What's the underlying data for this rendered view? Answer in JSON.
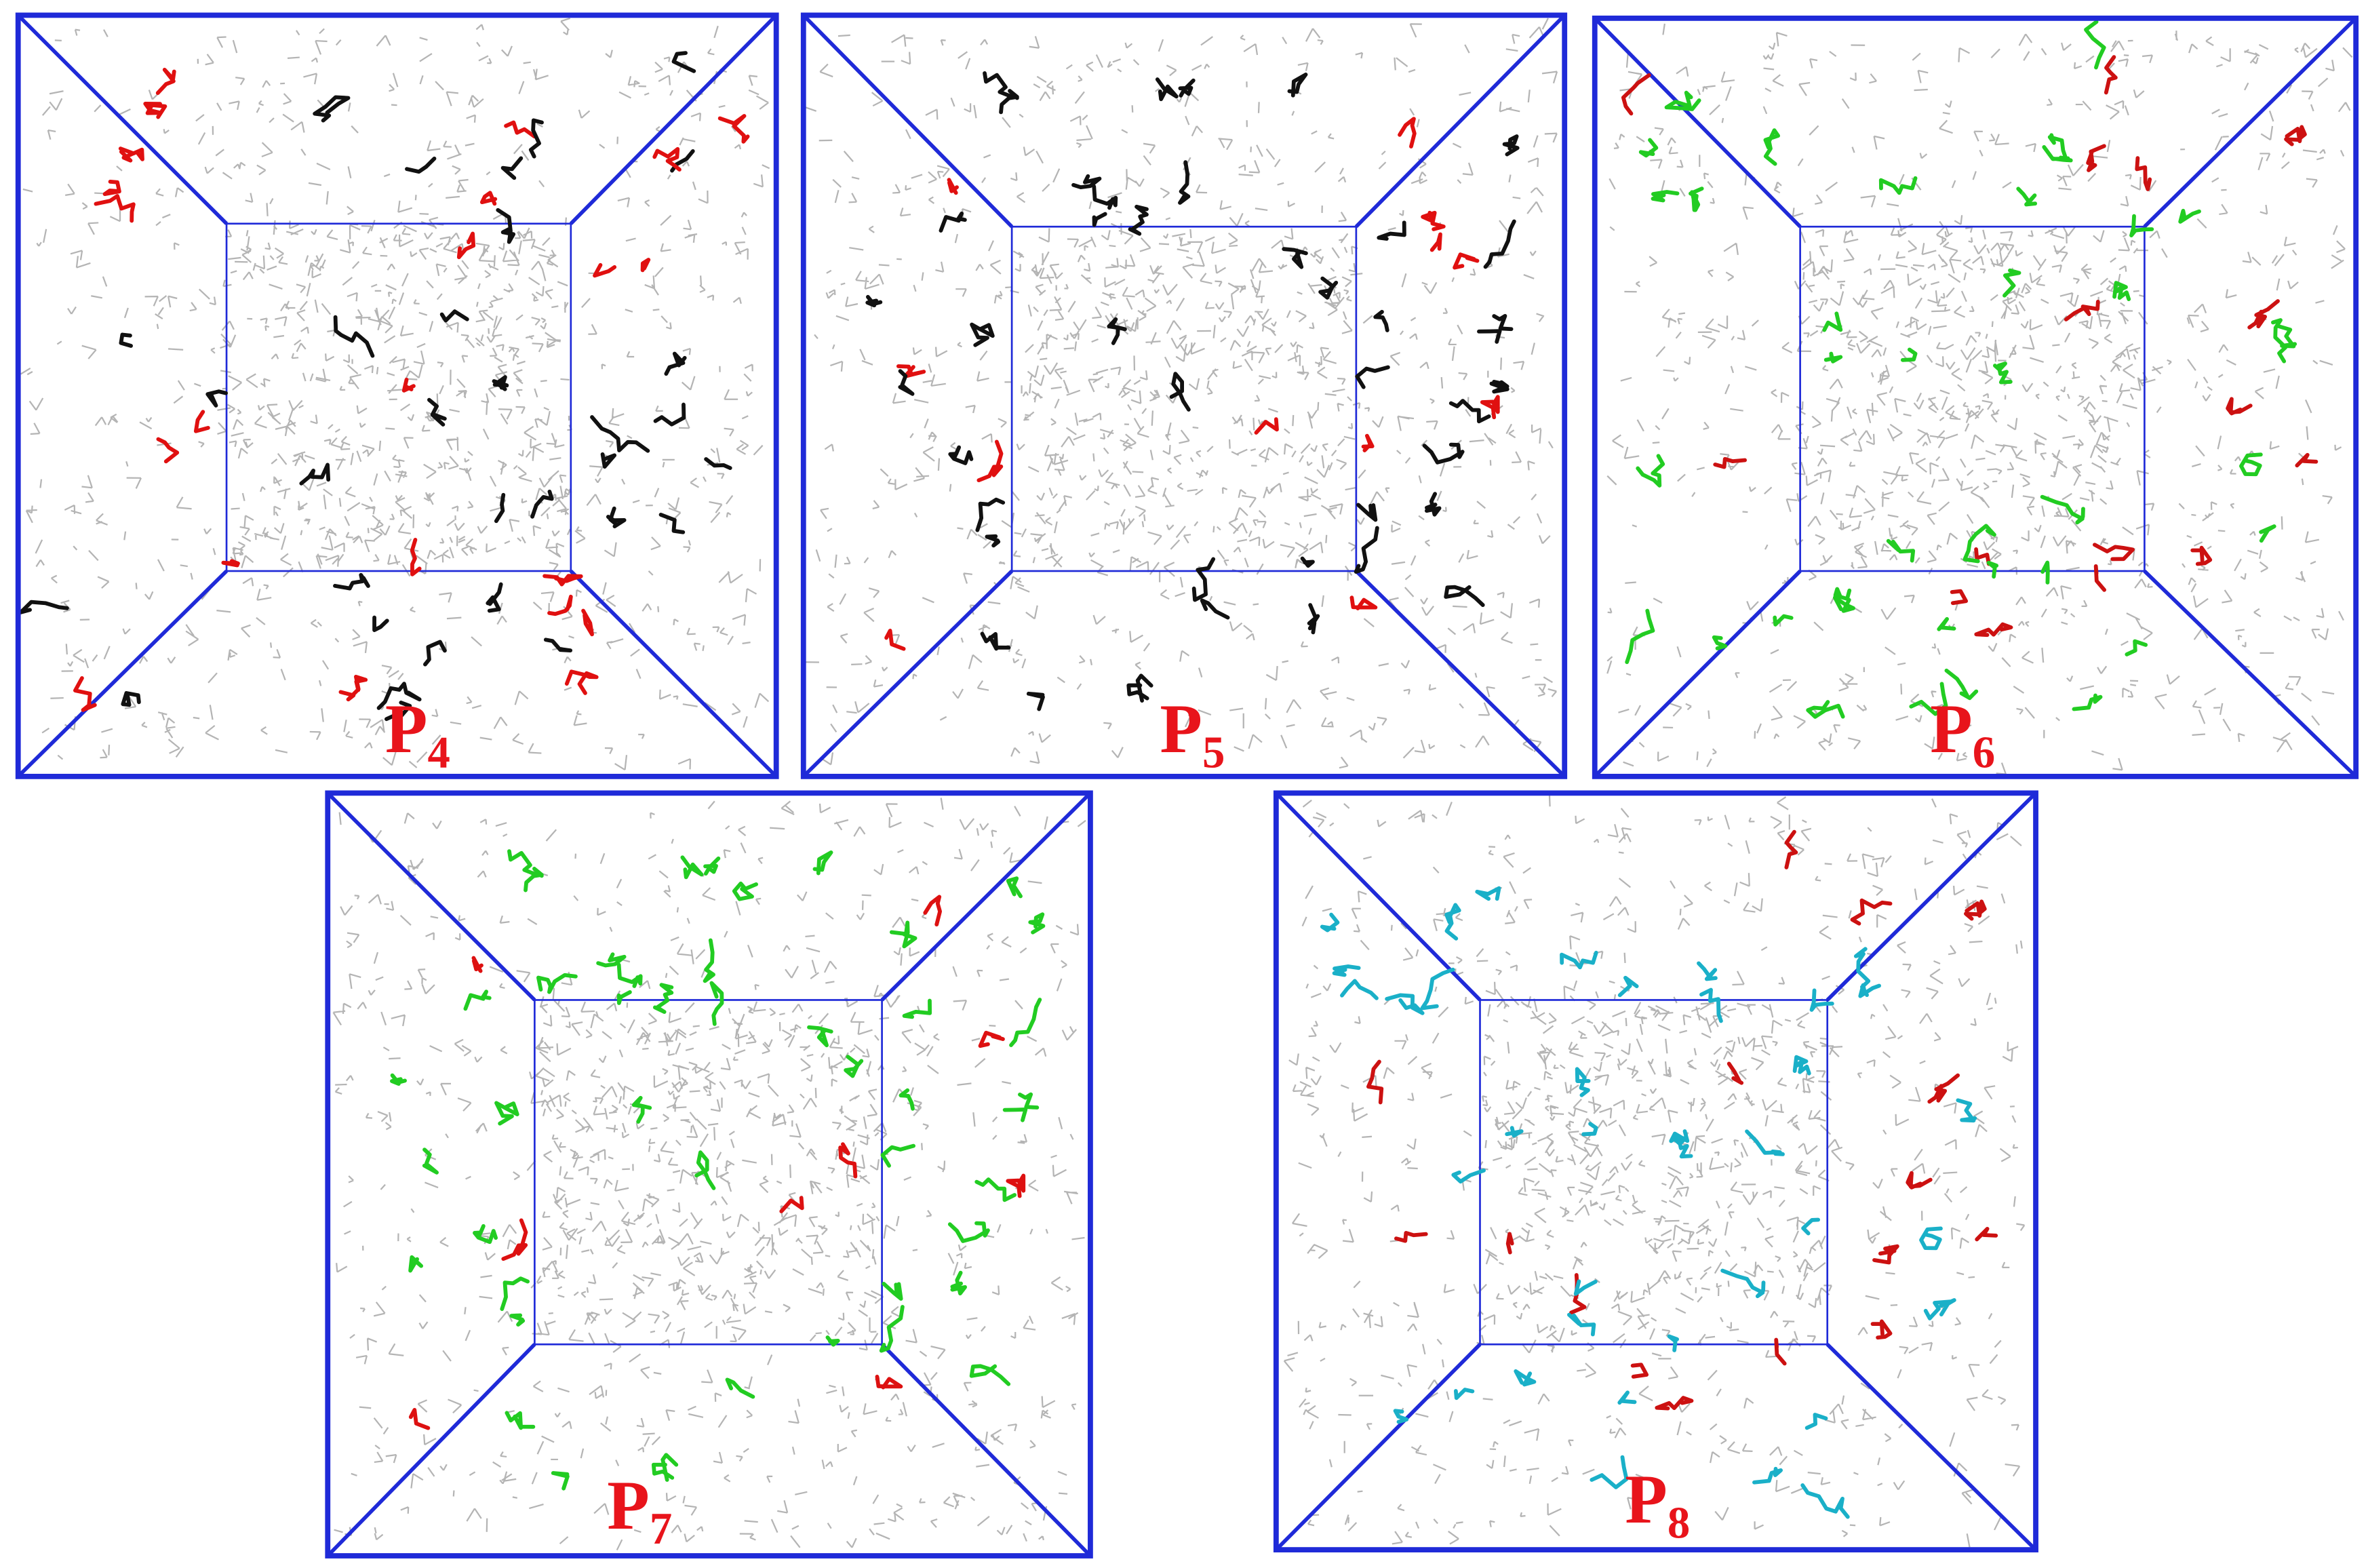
{
  "panels": [
    {
      "label": "P",
      "subscript": "4"
    },
    {
      "label": "P",
      "subscript": "5"
    },
    {
      "label": "P",
      "subscript": "6"
    },
    {
      "label": "P",
      "subscript": "7"
    },
    {
      "label": "P",
      "subscript": "8"
    }
  ]
}
